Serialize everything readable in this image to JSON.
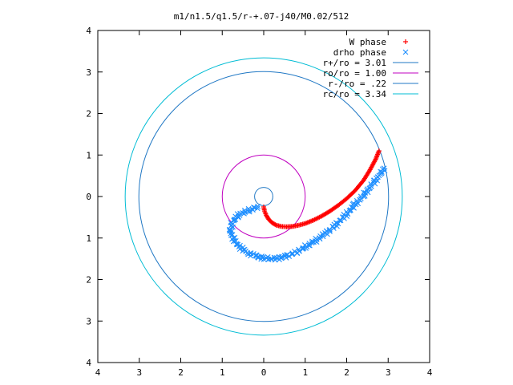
{
  "chart_data": {
    "type": "scatter",
    "title": "m1/n1.5/q1.5/r-+.07-j40/M0.02/512",
    "xlim": [
      -4,
      4
    ],
    "ylim": [
      -4,
      4
    ],
    "x_ticks": [
      -4,
      -3,
      -2,
      -1,
      0,
      1,
      2,
      3,
      4
    ],
    "y_ticks": [
      -4,
      -3,
      -2,
      -1,
      0,
      1,
      2,
      3,
      4
    ],
    "x_tick_labels": [
      "4",
      "3",
      "2",
      "1",
      "0",
      "1",
      "2",
      "3",
      "4"
    ],
    "y_tick_labels": [
      "4",
      "3",
      "2",
      "1",
      "0",
      "1",
      "2",
      "3",
      "4"
    ],
    "grid": false,
    "legend_position": "top-right",
    "series": [
      {
        "name": "W phase",
        "marker": "+",
        "color": "#ff0000",
        "points": [
          [
            0.0,
            -0.25
          ],
          [
            0.02,
            -0.35
          ],
          [
            0.06,
            -0.45
          ],
          [
            0.12,
            -0.55
          ],
          [
            0.2,
            -0.63
          ],
          [
            0.3,
            -0.69
          ],
          [
            0.42,
            -0.72
          ],
          [
            0.55,
            -0.73
          ],
          [
            0.7,
            -0.72
          ],
          [
            0.85,
            -0.69
          ],
          [
            1.0,
            -0.65
          ],
          [
            1.2,
            -0.57
          ],
          [
            1.4,
            -0.47
          ],
          [
            1.6,
            -0.35
          ],
          [
            1.8,
            -0.21
          ],
          [
            2.0,
            -0.05
          ],
          [
            2.2,
            0.14
          ],
          [
            2.4,
            0.38
          ],
          [
            2.55,
            0.62
          ],
          [
            2.7,
            0.9
          ],
          [
            2.78,
            1.1
          ]
        ]
      },
      {
        "name": "drho phase",
        "marker": "x",
        "color": "#1f8fff",
        "points": [
          [
            -0.15,
            -0.25
          ],
          [
            -0.4,
            -0.35
          ],
          [
            -0.6,
            -0.45
          ],
          [
            -0.75,
            -0.6
          ],
          [
            -0.8,
            -0.8
          ],
          [
            -0.75,
            -1.0
          ],
          [
            -0.6,
            -1.2
          ],
          [
            -0.4,
            -1.35
          ],
          [
            -0.2,
            -1.43
          ],
          [
            0.0,
            -1.48
          ],
          [
            0.2,
            -1.5
          ],
          [
            0.4,
            -1.48
          ],
          [
            0.6,
            -1.42
          ],
          [
            0.8,
            -1.33
          ],
          [
            1.0,
            -1.22
          ],
          [
            1.2,
            -1.1
          ],
          [
            1.4,
            -0.95
          ],
          [
            1.6,
            -0.8
          ],
          [
            1.8,
            -0.62
          ],
          [
            2.0,
            -0.42
          ],
          [
            2.2,
            -0.2
          ],
          [
            2.4,
            0.02
          ],
          [
            2.6,
            0.27
          ],
          [
            2.8,
            0.53
          ],
          [
            2.9,
            0.68
          ]
        ]
      }
    ],
    "circles": [
      {
        "name": "r+/ro = 3.01",
        "label": "r+/ro = 3.01",
        "radius": 3.01,
        "color": "#1f77c4"
      },
      {
        "name": "ro/ro = 1.00",
        "label": "ro/ro = 1.00",
        "radius": 1.0,
        "color": "#c000c0"
      },
      {
        "name": "r-/ro = .22",
        "label": "r-/ro = .22",
        "radius": 0.22,
        "color": "#1f77c4"
      },
      {
        "name": "rc/ro = 3.34",
        "label": "rc/ro = 3.34",
        "radius": 3.34,
        "color": "#00bcd4"
      }
    ]
  }
}
